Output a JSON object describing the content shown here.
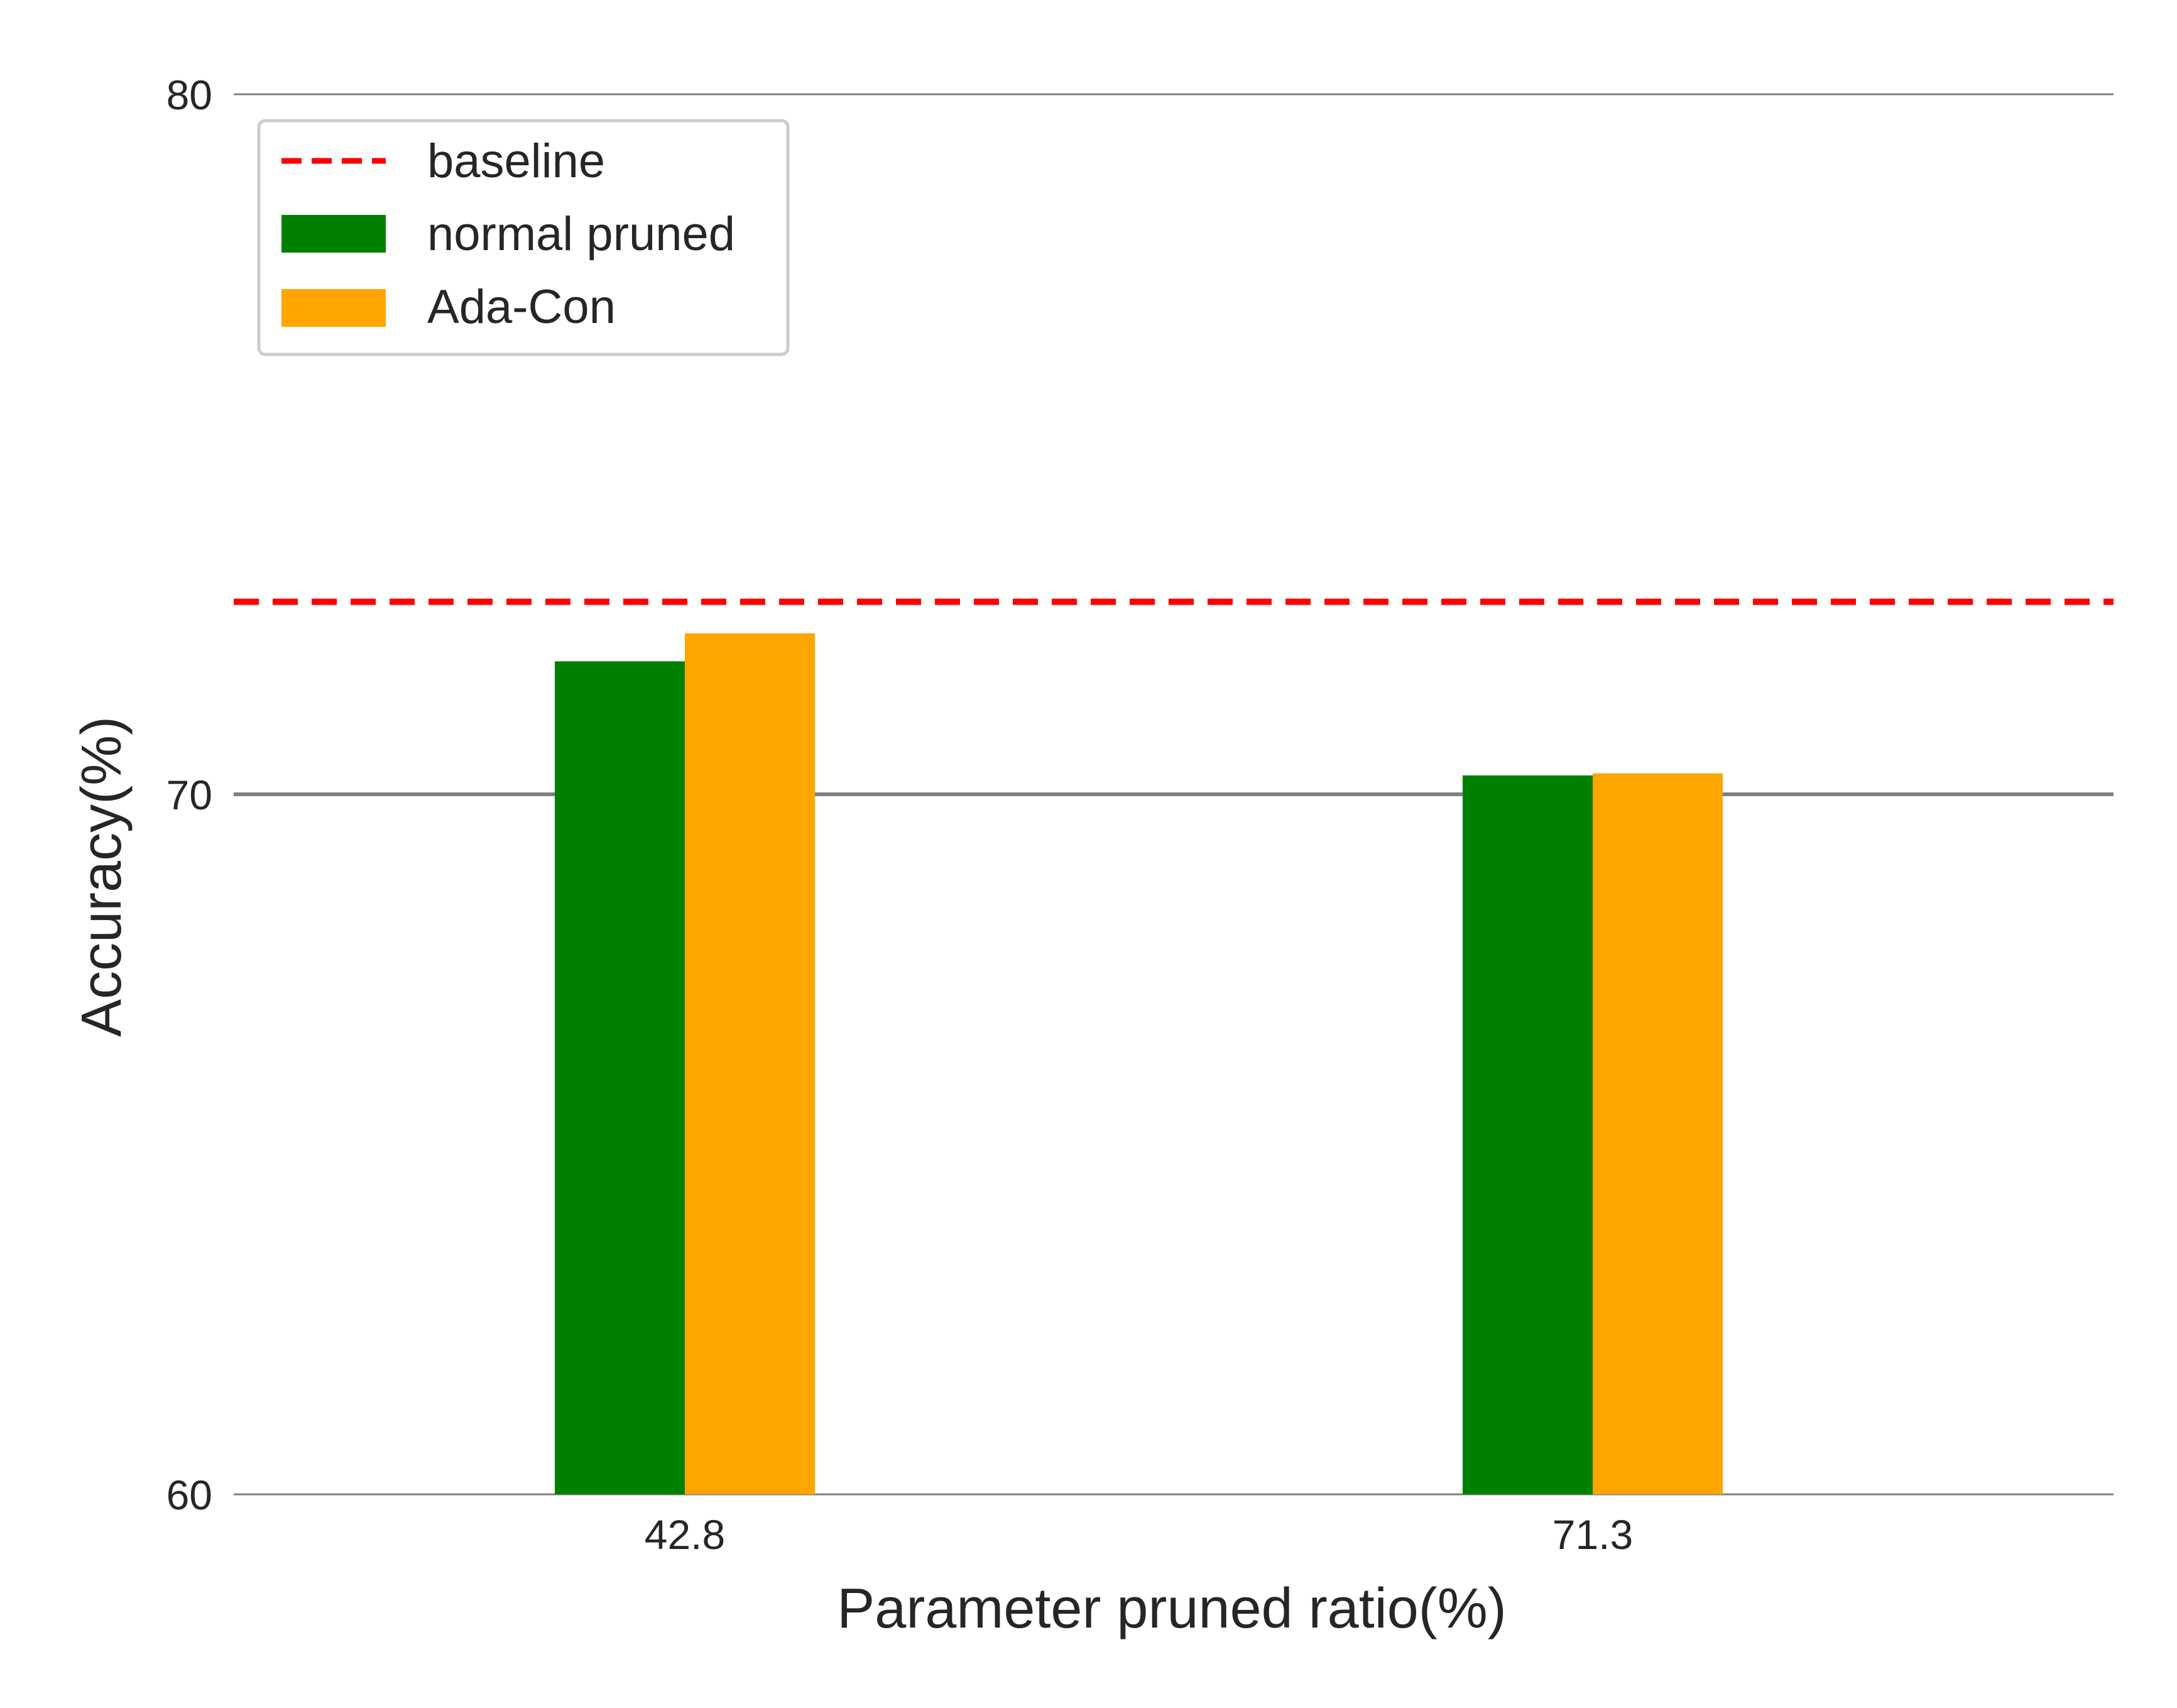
{
  "chart_data": {
    "type": "bar",
    "categories": [
      "42.8",
      "71.3"
    ],
    "series": [
      {
        "name": "normal pruned",
        "values": [
          71.9,
          70.27
        ],
        "color": "#008000"
      },
      {
        "name": "Ada-Con",
        "values": [
          72.3,
          70.3
        ],
        "color": "#ffa500"
      }
    ],
    "baseline": {
      "name": "baseline",
      "value": 72.75,
      "color": "#ff0000",
      "style": "dashed"
    },
    "xlabel": "Parameter pruned ratio(%)",
    "ylabel": "Accuracy(%)",
    "ylim": [
      60,
      80
    ],
    "yticks": [
      "60",
      "70",
      "80"
    ],
    "grid": "horizontal",
    "legend_position": "top-left"
  }
}
